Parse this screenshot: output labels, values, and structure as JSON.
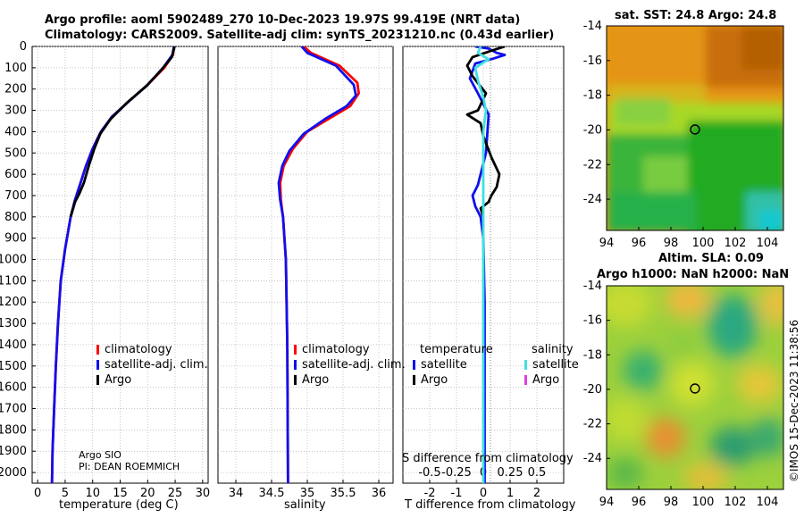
{
  "header": {
    "title_line1": "Argo profile: aoml 5902489_270 10-Dec-2023 19.97S 99.419E (NRT data)",
    "title_line2": "Climatology: CARS2009. Satellite-adj clim: synTS_20231210.nc (0.43d earlier)"
  },
  "right_panels": {
    "sst_title": "sat. SST: 24.8 Argo: 24.8",
    "altim_title": "Altim. SLA: 0.09",
    "h_title": "Argo h1000: NaN h2000: NaN"
  },
  "timestamp": "©IMOS 15-Dec-2023 11:38:56",
  "credits": {
    "line1": "Argo SIO",
    "line2": "PI: DEAN ROEMMICH"
  },
  "colors": {
    "climatology": "#ff0000",
    "satellite": "#1010ee",
    "argo": "#000000",
    "sal_satellite": "#40e0e0",
    "sal_argo": "#e040e0"
  },
  "chart_data": [
    {
      "type": "line",
      "name": "temperature",
      "xlabel": "temperature (deg C)",
      "xlim": [
        -1,
        31
      ],
      "xticks": [
        0,
        5,
        10,
        15,
        20,
        25,
        30
      ],
      "ylim": [
        0,
        2050
      ],
      "yticks": [
        0,
        100,
        200,
        300,
        400,
        500,
        600,
        700,
        800,
        900,
        1000,
        1100,
        1200,
        1300,
        1400,
        1500,
        1600,
        1700,
        1800,
        1900,
        2000
      ],
      "legend": [
        "climatology",
        "satellite-adj. clim.",
        "Argo"
      ],
      "series": [
        {
          "name": "climatology",
          "points": [
            [
              24.8,
              0
            ],
            [
              24.6,
              40
            ],
            [
              23,
              100
            ],
            [
              20,
              180
            ],
            [
              16.5,
              260
            ],
            [
              13.5,
              330
            ],
            [
              11.5,
              400
            ],
            [
              10,
              480
            ],
            [
              8.8,
              560
            ],
            [
              7.8,
              640
            ],
            [
              6.8,
              720
            ],
            [
              6,
              800
            ],
            [
              5,
              950
            ],
            [
              4.2,
              1100
            ],
            [
              3.7,
              1300
            ],
            [
              3.3,
              1500
            ],
            [
              3,
              1700
            ],
            [
              2.7,
              1900
            ],
            [
              2.6,
              2050
            ]
          ]
        },
        {
          "name": "satellite-adj. clim.",
          "points": [
            [
              24.8,
              0
            ],
            [
              24.5,
              40
            ],
            [
              22.8,
              100
            ],
            [
              20,
              180
            ],
            [
              16.5,
              260
            ],
            [
              13.5,
              330
            ],
            [
              11.5,
              400
            ],
            [
              10,
              480
            ],
            [
              8.8,
              560
            ],
            [
              7.8,
              640
            ],
            [
              6.8,
              720
            ],
            [
              6,
              800
            ],
            [
              5,
              950
            ],
            [
              4.2,
              1100
            ],
            [
              3.7,
              1300
            ],
            [
              3.3,
              1500
            ],
            [
              3,
              1700
            ],
            [
              2.7,
              1900
            ],
            [
              2.6,
              2050
            ]
          ]
        },
        {
          "name": "Argo",
          "points": [
            [
              24.9,
              0
            ],
            [
              24.4,
              50
            ],
            [
              22.5,
              110
            ],
            [
              19.8,
              185
            ],
            [
              16.2,
              265
            ],
            [
              13.3,
              340
            ],
            [
              11.4,
              410
            ],
            [
              10.3,
              480
            ],
            [
              9.3,
              560
            ],
            [
              8.4,
              640
            ],
            [
              7.6,
              690
            ],
            [
              6.8,
              730
            ],
            [
              6,
              800
            ]
          ]
        }
      ]
    },
    {
      "type": "line",
      "name": "salinity",
      "xlabel": "salinity",
      "xlim": [
        33.75,
        36.2
      ],
      "xticks": [
        34,
        34.5,
        35,
        35.5,
        36
      ],
      "ylim": [
        0,
        2050
      ],
      "legend": [
        "climatology",
        "satellite-adj. clim.",
        "Argo"
      ],
      "series": [
        {
          "name": "climatology",
          "points": [
            [
              34.95,
              0
            ],
            [
              35.05,
              30
            ],
            [
              35.45,
              90
            ],
            [
              35.7,
              170
            ],
            [
              35.72,
              220
            ],
            [
              35.6,
              280
            ],
            [
              35.3,
              340
            ],
            [
              35,
              400
            ],
            [
              34.8,
              480
            ],
            [
              34.67,
              560
            ],
            [
              34.62,
              640
            ],
            [
              34.63,
              720
            ],
            [
              34.66,
              800
            ],
            [
              34.7,
              1000
            ],
            [
              34.72,
              1400
            ],
            [
              34.73,
              2050
            ]
          ]
        },
        {
          "name": "satellite-adj. clim.",
          "points": [
            [
              34.92,
              0
            ],
            [
              35,
              30
            ],
            [
              35.4,
              90
            ],
            [
              35.65,
              180
            ],
            [
              35.68,
              230
            ],
            [
              35.55,
              280
            ],
            [
              35.25,
              340
            ],
            [
              34.95,
              410
            ],
            [
              34.75,
              490
            ],
            [
              34.65,
              560
            ],
            [
              34.6,
              640
            ],
            [
              34.62,
              720
            ],
            [
              34.66,
              800
            ],
            [
              34.7,
              1000
            ],
            [
              34.72,
              1400
            ],
            [
              34.73,
              2050
            ]
          ]
        }
      ]
    },
    {
      "type": "line",
      "name": "difference",
      "xlabel": "T difference from climatology",
      "xlabel_top": "S difference from climatology",
      "xlim": [
        -3,
        3
      ],
      "xticks": [
        -2,
        -1,
        0,
        1,
        2
      ],
      "s_ticks": [
        "-0.5",
        "-0.25",
        "0",
        "0.25",
        "0.5"
      ],
      "ylim": [
        0,
        2050
      ],
      "legend_headers": [
        "temperature",
        "salinity"
      ],
      "legend": [
        "satellite",
        "Argo",
        "satellite",
        "Argo"
      ],
      "series": [
        {
          "name": "T satellite",
          "points": [
            [
              -0.3,
              0
            ],
            [
              0.2,
              10
            ],
            [
              0.5,
              30
            ],
            [
              0.8,
              40
            ],
            [
              0.3,
              60
            ],
            [
              -0.3,
              80
            ],
            [
              -0.5,
              150
            ],
            [
              -0.2,
              220
            ],
            [
              0.2,
              320
            ],
            [
              0.1,
              500
            ],
            [
              -0.1,
              600
            ],
            [
              -0.2,
              650
            ],
            [
              -0.4,
              700
            ],
            [
              -0.3,
              750
            ],
            [
              -0.1,
              800
            ],
            [
              0,
              900
            ],
            [
              0.05,
              1200
            ],
            [
              0.05,
              1600
            ],
            [
              0.05,
              2050
            ]
          ]
        },
        {
          "name": "T Argo",
          "points": [
            [
              0.8,
              0
            ],
            [
              0.3,
              20
            ],
            [
              -0.4,
              50
            ],
            [
              -0.6,
              90
            ],
            [
              -0.4,
              140
            ],
            [
              0.1,
              220
            ],
            [
              -0.2,
              300
            ],
            [
              -0.6,
              320
            ],
            [
              -0.1,
              360
            ],
            [
              0,
              420
            ],
            [
              0.3,
              520
            ],
            [
              0.6,
              600
            ],
            [
              0.5,
              660
            ],
            [
              0.3,
              700
            ],
            [
              0.2,
              730
            ],
            [
              -0.1,
              760
            ],
            [
              0,
              800
            ]
          ]
        },
        {
          "name": "S satellite",
          "points": [
            [
              -0.1,
              0
            ],
            [
              -0.2,
              30
            ],
            [
              0.2,
              60
            ],
            [
              -0.3,
              100
            ],
            [
              -0.2,
              160
            ],
            [
              0,
              240
            ],
            [
              0.1,
              300
            ],
            [
              0,
              400
            ],
            [
              0,
              600
            ],
            [
              0,
              800
            ],
            [
              0,
              1200
            ],
            [
              0,
              2050
            ]
          ]
        }
      ]
    },
    {
      "type": "heatmap",
      "name": "sat-sst-map",
      "xticks": [
        94,
        96,
        98,
        100,
        102,
        104
      ],
      "yticks": [
        -14,
        -16,
        -18,
        -20,
        -22,
        -24
      ],
      "xlim": [
        94,
        105
      ],
      "ylim": [
        -25.8,
        -14
      ],
      "marker": [
        99.4,
        -20
      ]
    },
    {
      "type": "heatmap",
      "name": "altim-sla-map",
      "xticks": [
        94,
        96,
        98,
        100,
        102,
        104
      ],
      "yticks": [
        -14,
        -16,
        -18,
        -20,
        -22,
        -24
      ],
      "xlim": [
        94,
        105
      ],
      "ylim": [
        -25.8,
        -14
      ],
      "marker": [
        99.4,
        -20
      ]
    }
  ]
}
